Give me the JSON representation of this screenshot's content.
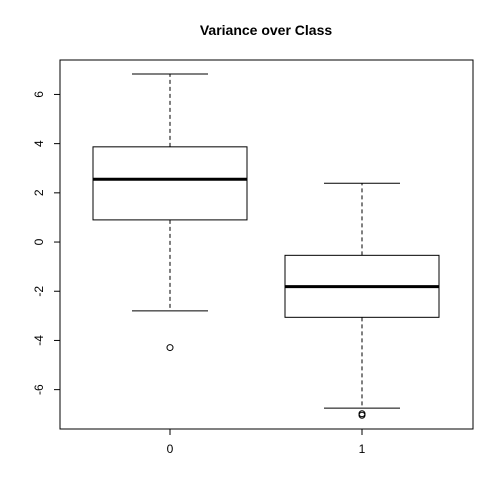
{
  "chart_data": {
    "type": "boxplot",
    "title": "Variance over Class",
    "xlabel": "",
    "ylabel": "",
    "categories": [
      "0",
      "1"
    ],
    "ylim": [
      -7.6,
      7.4
    ],
    "yticks": [
      -6,
      -4,
      -2,
      0,
      2,
      4,
      6
    ],
    "ytick_labels": [
      "-6",
      "-4",
      "-2",
      "0",
      "2",
      "4",
      "6"
    ],
    "boxes": [
      {
        "category": "0",
        "whisker_low": -2.8,
        "q1": 0.9,
        "median": 2.55,
        "q3": 3.87,
        "whisker_high": 6.83,
        "outliers": [
          -4.29
        ]
      },
      {
        "category": "1",
        "whisker_low": -6.75,
        "q1": -3.06,
        "median": -1.81,
        "q3": -0.54,
        "whisker_high": 2.39,
        "outliers": [
          -6.98,
          -7.04
        ]
      }
    ],
    "grid": false,
    "legend": "none"
  }
}
